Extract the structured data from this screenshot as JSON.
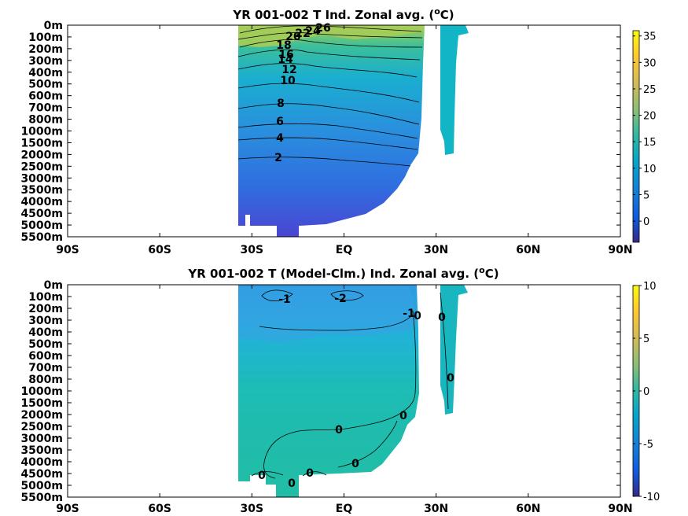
{
  "chart_data": [
    {
      "type": "heatmap",
      "title": "YR 001-002 T Ind. Zonal avg. (",
      "title_sup": "o",
      "title_end": "C)",
      "x_ticks": [
        "90S",
        "60S",
        "30S",
        "EQ",
        "30N",
        "60N",
        "90N"
      ],
      "y_ticks": [
        "0m",
        "100m",
        "200m",
        "300m",
        "400m",
        "500m",
        "600m",
        "700m",
        "800m",
        "1000m",
        "1500m",
        "2000m",
        "2500m",
        "3000m",
        "3500m",
        "4000m",
        "4500m",
        "5000m",
        "5500m"
      ],
      "colorbar_ticks": [
        "35",
        "30",
        "25",
        "20",
        "15",
        "10",
        "5",
        "0"
      ],
      "clim": [
        -4,
        36
      ],
      "contour_labels": [
        {
          "text": "26",
          "lat": -1.5,
          "depth_index": 0.3
        },
        {
          "text": "24",
          "lat": -6.5,
          "depth_index": 0.5
        },
        {
          "text": "22",
          "lat": -9.5,
          "depth_index": 0.7
        },
        {
          "text": "20",
          "lat": -12.0,
          "depth_index": 0.9
        },
        {
          "text": "18",
          "lat": -15.0,
          "depth_index": 1.0
        },
        {
          "text": "16",
          "lat": -13.5,
          "depth_index": 1.3
        },
        {
          "text": "14",
          "lat": -13.0,
          "depth_index": 1.9
        },
        {
          "text": "12",
          "lat": -12.0,
          "depth_index": 2.7
        },
        {
          "text": "10",
          "lat": -13.0,
          "depth_index": 3.6
        },
        {
          "text": "8",
          "lat": -14.8,
          "depth_index": 5.5
        },
        {
          "text": "6",
          "lat": -15.5,
          "depth_index": 7.2
        },
        {
          "text": "4",
          "lat": -15.5,
          "depth_index": 8.8
        },
        {
          "text": "2",
          "lat": -16.0,
          "depth_index": 10.5
        }
      ]
    },
    {
      "type": "heatmap",
      "title": "YR 001-002 T (Model-Clm.) Ind. Zonal avg. (",
      "title_sup": "o",
      "title_end": "C)",
      "x_ticks": [
        "90S",
        "60S",
        "30S",
        "EQ",
        "30N",
        "60N",
        "90N"
      ],
      "y_ticks": [
        "0m",
        "100m",
        "200m",
        "300m",
        "400m",
        "500m",
        "600m",
        "700m",
        "800m",
        "1000m",
        "1500m",
        "2000m",
        "2500m",
        "3000m",
        "3500m",
        "4000m",
        "4500m",
        "5000m",
        "5500m"
      ],
      "colorbar_ticks": [
        "10",
        "5",
        "0",
        "-5",
        "-10"
      ],
      "clim": [
        -10,
        10
      ],
      "contour_labels": [
        {
          "text": "-1",
          "lat": -14.0,
          "depth_index": 1.3
        },
        {
          "text": "-2",
          "lat": -1.0,
          "depth_index": 1.3
        },
        {
          "text": "-1",
          "lat": 17.5,
          "depth_index": 2.9
        },
        {
          "text": "0",
          "lat": 20.0,
          "depth_index": 3.0
        },
        {
          "text": "0",
          "lat": 31.5,
          "depth_index": 2.7
        },
        {
          "text": "0",
          "lat": 32.5,
          "depth_index": 7.9
        },
        {
          "text": "0",
          "lat": 15.5,
          "depth_index": 11.0
        },
        {
          "text": "0",
          "lat": -1.5,
          "depth_index": 12.3
        },
        {
          "text": "0",
          "lat": 3.0,
          "depth_index": 15.0
        },
        {
          "text": "0",
          "lat": -27.0,
          "depth_index": 16.2
        },
        {
          "text": "0",
          "lat": -10.5,
          "depth_index": 16.0
        },
        {
          "text": "0",
          "lat": -17.5,
          "depth_index": 16.8
        }
      ]
    }
  ]
}
